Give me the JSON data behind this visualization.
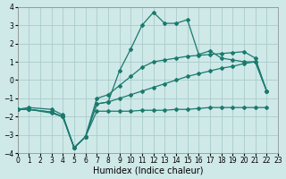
{
  "xlabel": "Humidex (Indice chaleur)",
  "xlim": [
    0,
    23
  ],
  "ylim": [
    -4,
    4
  ],
  "background_color": "#cfe8e8",
  "grid_color": "#aacccc",
  "line_color": "#1a7a6e",
  "series": [
    {
      "x": [
        0,
        1,
        3,
        4,
        5,
        6,
        7,
        8,
        9,
        10,
        11,
        12,
        13,
        14,
        15,
        16,
        17,
        18,
        19,
        20,
        21,
        22
      ],
      "y": [
        -1.6,
        -1.6,
        -1.75,
        -2.0,
        -3.7,
        -3.1,
        -1.7,
        -1.7,
        -1.7,
        -1.7,
        -1.65,
        -1.65,
        -1.65,
        -1.6,
        -1.6,
        -1.55,
        -1.5,
        -1.5,
        -1.5,
        -1.5,
        -1.5,
        -1.5
      ]
    },
    {
      "x": [
        0,
        1,
        3,
        4,
        5,
        6,
        7,
        8,
        9,
        10,
        11,
        12,
        13,
        14,
        15,
        16,
        17,
        18,
        19,
        20,
        21,
        22
      ],
      "y": [
        -1.6,
        -1.6,
        -1.8,
        -2.0,
        -3.7,
        -3.1,
        -1.3,
        -1.2,
        -1.0,
        -0.8,
        -0.6,
        -0.4,
        -0.2,
        0.0,
        0.2,
        0.35,
        0.5,
        0.65,
        0.75,
        0.9,
        1.0,
        -0.6
      ]
    },
    {
      "x": [
        0,
        1,
        3,
        4,
        5,
        6,
        7,
        8,
        9,
        10,
        11,
        12,
        13,
        14,
        15,
        16,
        17,
        18,
        19,
        20,
        21,
        22
      ],
      "y": [
        -1.6,
        -1.5,
        -1.6,
        -1.9,
        -3.7,
        -3.1,
        -1.0,
        -0.8,
        -0.3,
        0.2,
        0.7,
        1.0,
        1.1,
        1.2,
        1.3,
        1.35,
        1.4,
        1.45,
        1.5,
        1.55,
        1.2,
        -0.6
      ]
    },
    {
      "x": [
        0,
        1,
        3,
        4,
        5,
        6,
        7,
        8,
        9,
        10,
        11,
        12,
        13,
        14,
        15,
        16,
        17,
        18,
        19,
        20,
        21,
        22
      ],
      "y": [
        -1.6,
        -1.6,
        -1.75,
        -2.0,
        -3.7,
        -3.1,
        -1.3,
        -1.2,
        0.5,
        1.7,
        3.0,
        3.7,
        3.1,
        3.1,
        3.3,
        1.4,
        1.6,
        1.2,
        1.1,
        1.0,
        1.0,
        -0.6
      ]
    }
  ],
  "xticks": [
    0,
    1,
    2,
    3,
    4,
    5,
    6,
    7,
    8,
    9,
    10,
    11,
    12,
    13,
    14,
    15,
    16,
    17,
    18,
    19,
    20,
    21,
    22,
    23
  ],
  "yticks": [
    -4,
    -3,
    -2,
    -1,
    0,
    1,
    2,
    3,
    4
  ],
  "tick_fontsize": 5.5,
  "xlabel_fontsize": 7,
  "markersize": 2.0,
  "linewidth": 0.9
}
